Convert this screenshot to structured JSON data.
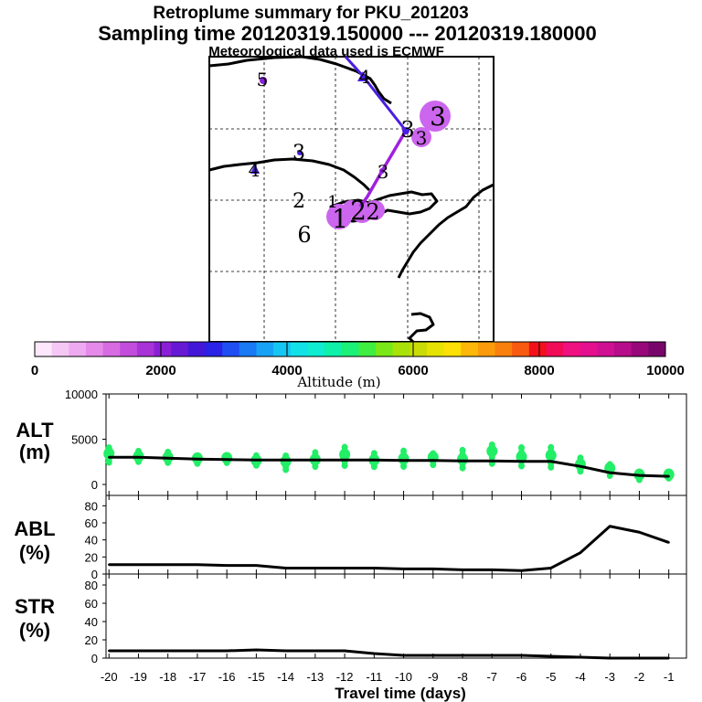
{
  "header": {
    "title": "Retroplume summary for PKU_201203",
    "sampling": "Sampling time   20120319.150000 --- 20120319.180000",
    "met": "Meteorological data used is ECMWF"
  },
  "map": {
    "labels": [
      "5",
      "4",
      "3",
      "4",
      "2",
      "1",
      "6",
      "1",
      "2",
      "2",
      "3",
      "3",
      "3",
      "3"
    ],
    "path_colors": {
      "upper": "#4a1ee0",
      "lower": "#a020e0"
    },
    "marker_color": "#4a1ee0",
    "blob_color": "#cc66ee"
  },
  "colorbar": {
    "ticks": [
      "0",
      "2000",
      "4000",
      "6000",
      "8000",
      "10000"
    ],
    "label": "Altitude (m)",
    "colors": [
      "#fde7fb",
      "#f5c7f5",
      "#eeaaf0",
      "#e58ae9",
      "#d66be2",
      "#c24ddc",
      "#a833d7",
      "#8a20d6",
      "#6618d4",
      "#4317d8",
      "#2a22e6",
      "#1f4ef2",
      "#1a79f5",
      "#17a2f5",
      "#16c6f2",
      "#13e1e8",
      "#10ecd0",
      "#0ff0a8",
      "#1bf078",
      "#3fee40",
      "#7ae818",
      "#a8e20a",
      "#c9dc06",
      "#e6e204",
      "#fde005",
      "#fcb708",
      "#fb9b0a",
      "#f9800c",
      "#f75a10",
      "#f3101a",
      "#f20b56",
      "#f01080",
      "#e4108e",
      "#cf1092",
      "#b60d8a",
      "#97087a",
      "#78066a"
    ]
  },
  "chart_data": [
    {
      "type": "line",
      "name": "ALT",
      "ylabel": "ALT\n(m)",
      "ylabel_lines": [
        "ALT",
        "(m)"
      ],
      "ylim": [
        0,
        10000
      ],
      "yticks": [
        "0",
        "5000",
        "10000"
      ],
      "x": [
        -20,
        -19,
        -18,
        -17,
        -16,
        -15,
        -14,
        -13,
        -12,
        -11,
        -10,
        -9,
        -8,
        -7,
        -6,
        -5,
        -4,
        -3,
        -2,
        -1
      ],
      "values": [
        3000,
        3000,
        2900,
        2800,
        2750,
        2700,
        2700,
        2700,
        2700,
        2700,
        2650,
        2650,
        2600,
        2600,
        2550,
        2550,
        2000,
        1300,
        1000,
        900
      ],
      "spread": [
        {
          "x": -20,
          "lo": 2300,
          "hi": 4200,
          "n": 6
        },
        {
          "x": -19,
          "lo": 2400,
          "hi": 3800,
          "n": 5
        },
        {
          "x": -18,
          "lo": 2300,
          "hi": 3700,
          "n": 5
        },
        {
          "x": -17,
          "lo": 2200,
          "hi": 3300,
          "n": 4
        },
        {
          "x": -16,
          "lo": 2300,
          "hi": 3300,
          "n": 4
        },
        {
          "x": -15,
          "lo": 2000,
          "hi": 3300,
          "n": 5
        },
        {
          "x": -14,
          "lo": 1500,
          "hi": 3300,
          "n": 6
        },
        {
          "x": -13,
          "lo": 1800,
          "hi": 3700,
          "n": 5
        },
        {
          "x": -12,
          "lo": 1900,
          "hi": 4300,
          "n": 6
        },
        {
          "x": -11,
          "lo": 1800,
          "hi": 3600,
          "n": 5
        },
        {
          "x": -10,
          "lo": 1800,
          "hi": 3900,
          "n": 5
        },
        {
          "x": -9,
          "lo": 2000,
          "hi": 3600,
          "n": 4
        },
        {
          "x": -8,
          "lo": 1600,
          "hi": 4000,
          "n": 5
        },
        {
          "x": -7,
          "lo": 2000,
          "hi": 4700,
          "n": 4
        },
        {
          "x": -6,
          "lo": 1800,
          "hi": 4300,
          "n": 5
        },
        {
          "x": -5,
          "lo": 1700,
          "hi": 4300,
          "n": 6
        },
        {
          "x": -4,
          "lo": 1300,
          "hi": 3100,
          "n": 5
        },
        {
          "x": -3,
          "lo": 800,
          "hi": 2400,
          "n": 4
        },
        {
          "x": -2,
          "lo": 400,
          "hi": 1500,
          "n": 4
        },
        {
          "x": -1,
          "lo": 600,
          "hi": 1400,
          "n": 4
        }
      ]
    },
    {
      "type": "line",
      "name": "ABL",
      "ylabel": "ABL\n(%)",
      "ylabel_lines": [
        "ABL",
        "(%)"
      ],
      "ylim": [
        0,
        90
      ],
      "yticks": [
        "0",
        "20",
        "40",
        "60",
        "80"
      ],
      "x": [
        -20,
        -19,
        -18,
        -17,
        -16,
        -15,
        -14,
        -13,
        -12,
        -11,
        -10,
        -9,
        -8,
        -7,
        -6,
        -5,
        -4,
        -3,
        -2,
        -1
      ],
      "values": [
        11,
        11,
        11,
        11,
        10,
        10,
        7,
        7,
        7,
        7,
        6,
        6,
        5,
        5,
        4,
        7,
        25,
        56,
        49,
        37
      ]
    },
    {
      "type": "line",
      "name": "STR",
      "ylabel": "STR\n(%)",
      "ylabel_lines": [
        "STR",
        "(%)"
      ],
      "ylim": [
        0,
        90
      ],
      "yticks": [
        "0",
        "20",
        "40",
        "60",
        "80"
      ],
      "x": [
        -20,
        -19,
        -18,
        -17,
        -16,
        -15,
        -14,
        -13,
        -12,
        -11,
        -10,
        -9,
        -8,
        -7,
        -6,
        -5,
        -4,
        -3,
        -2,
        -1
      ],
      "values": [
        8,
        8,
        8,
        8,
        8,
        9,
        8,
        8,
        8,
        5,
        3,
        3,
        3,
        3,
        3,
        2,
        1,
        0,
        0,
        0
      ]
    }
  ],
  "xaxis": {
    "ticks": [
      "-20",
      "-19",
      "-18",
      "-17",
      "-16",
      "-15",
      "-14",
      "-13",
      "-12",
      "-11",
      "-10",
      "-9",
      "-8",
      "-7",
      "-6",
      "-5",
      "-4",
      "-3",
      "-2",
      "-1"
    ],
    "label": "Travel time (days)",
    "xlim": [
      -20.1,
      -0.4
    ]
  },
  "colors": {
    "spread": "#22ee66",
    "line": "#000000"
  }
}
